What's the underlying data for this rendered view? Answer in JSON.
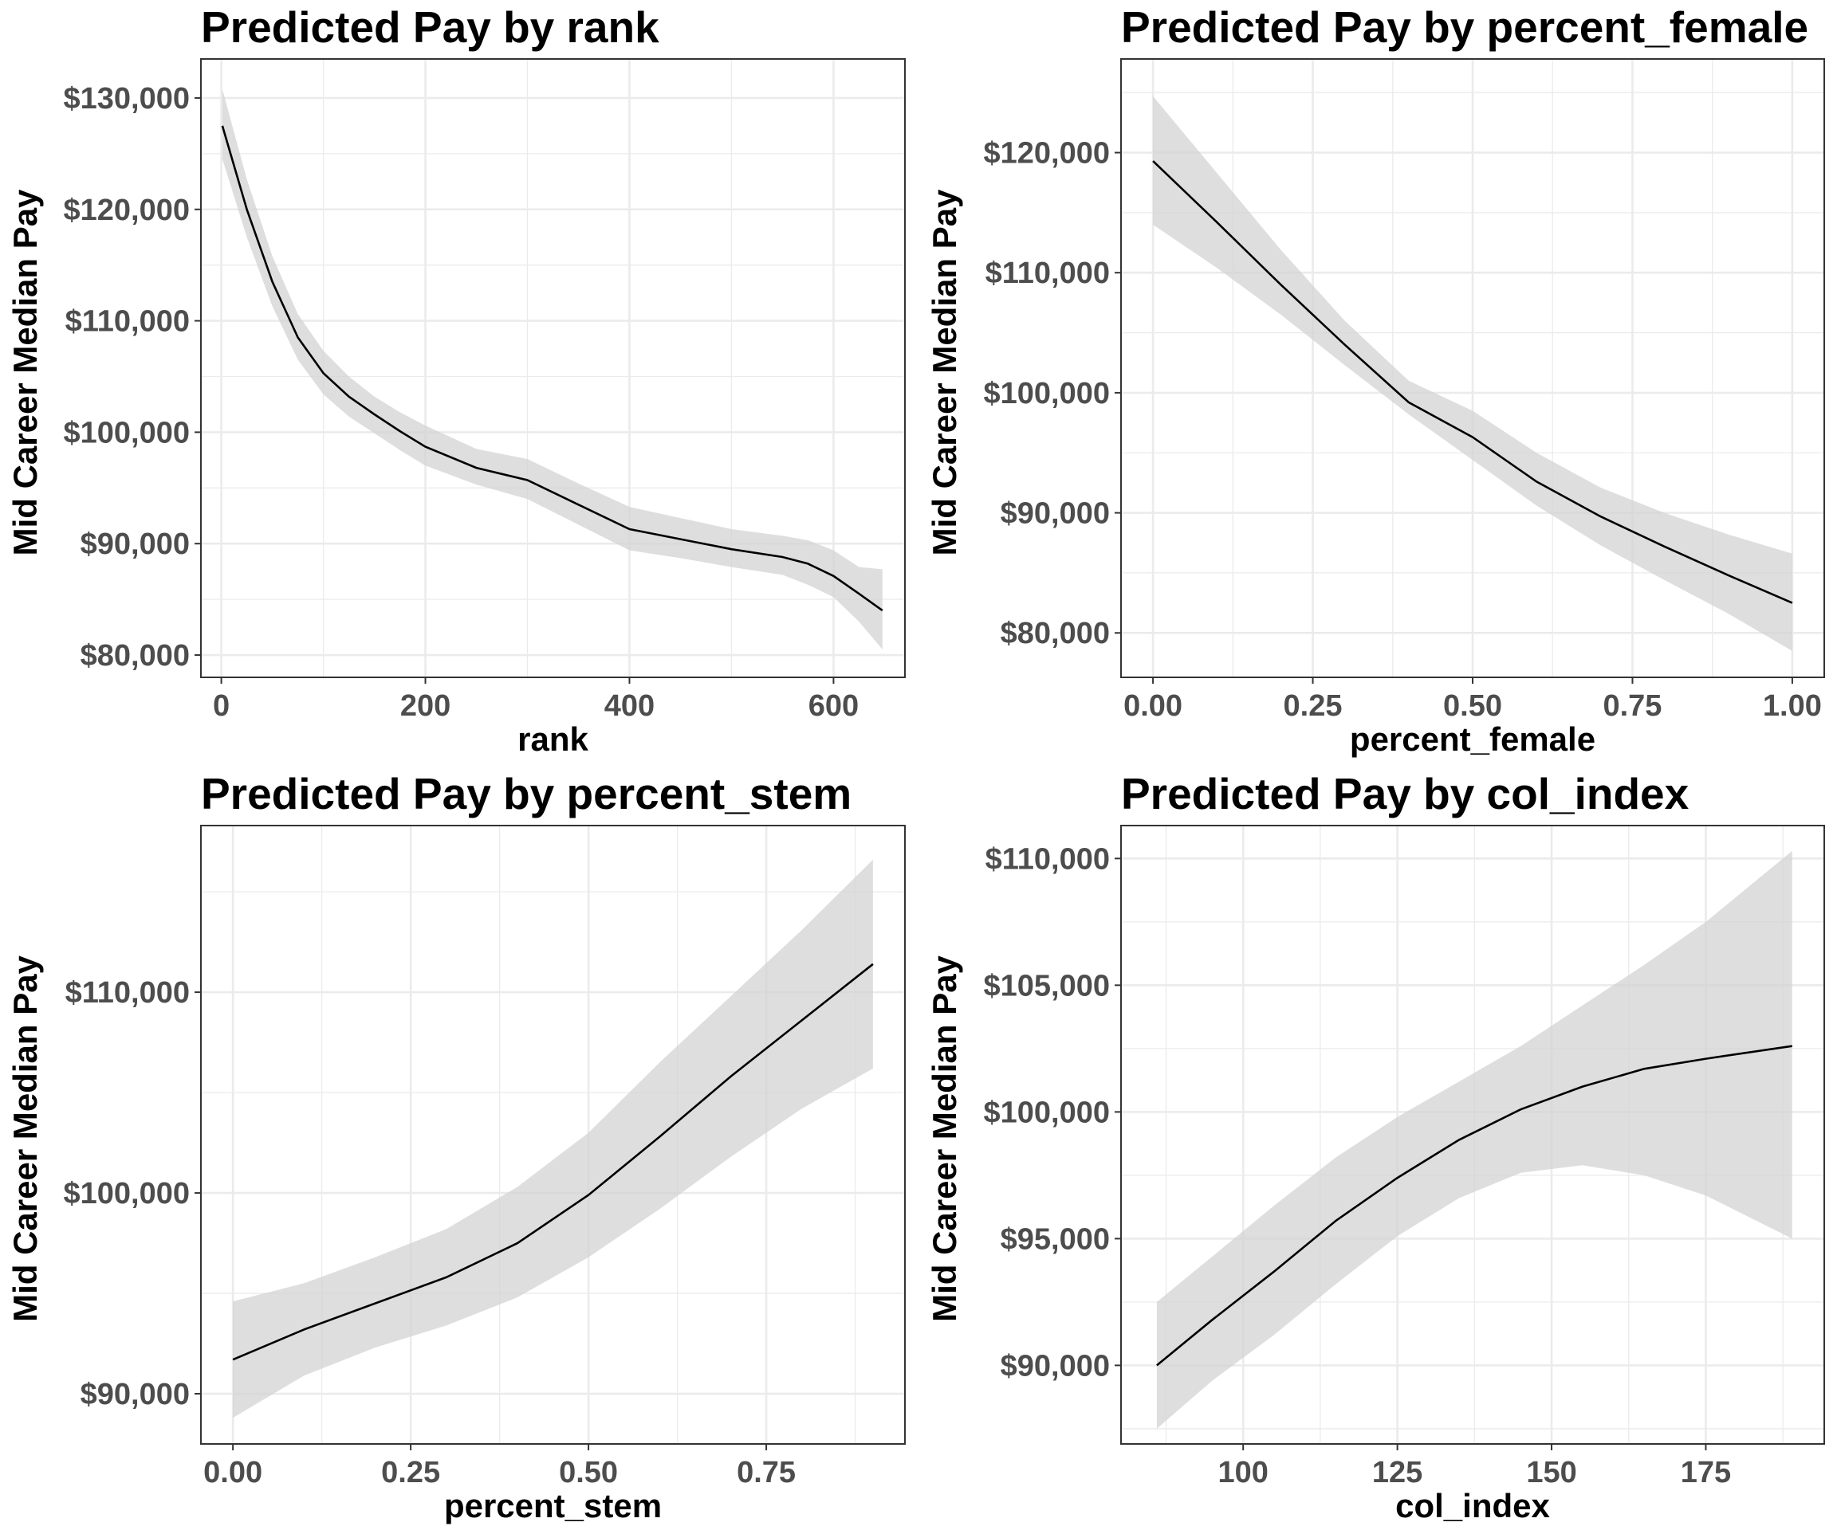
{
  "chart_data": [
    {
      "type": "line",
      "title": "Predicted Pay by rank",
      "xlabel": "rank",
      "ylabel": "Mid Career Median Pay",
      "xlim": [
        -20,
        670
      ],
      "ylim": [
        78000,
        133500
      ],
      "x_ticks": [
        0,
        200,
        400,
        600
      ],
      "x_tick_labels": [
        "0",
        "200",
        "400",
        "600"
      ],
      "y_ticks": [
        80000,
        90000,
        100000,
        110000,
        120000,
        130000
      ],
      "y_tick_labels": [
        "$80,000",
        "$90,000",
        "$100,000",
        "$110,000",
        "$120,000",
        "$130,000"
      ],
      "grid": true,
      "series": [
        {
          "x": [
            1,
            25,
            50,
            75,
            100,
            125,
            150,
            175,
            200,
            250,
            300,
            350,
            400,
            450,
            500,
            550,
            575,
            600,
            625,
            648
          ],
          "y": [
            127500,
            120000,
            113500,
            108500,
            105300,
            103200,
            101600,
            100100,
            98700,
            96800,
            95700,
            93500,
            91300,
            90400,
            89500,
            88800,
            88200,
            87100,
            85500,
            84000
          ],
          "y_low": [
            124500,
            117500,
            111300,
            106500,
            103400,
            101400,
            99900,
            98400,
            97000,
            95300,
            94000,
            91700,
            89400,
            88700,
            87900,
            87200,
            86300,
            85200,
            83000,
            80500
          ],
          "y_high": [
            130800,
            122700,
            115800,
            110600,
            107300,
            105000,
            103200,
            101800,
            100600,
            98500,
            97600,
            95400,
            93300,
            92300,
            91300,
            90700,
            90300,
            89400,
            87900,
            87700
          ]
        }
      ]
    },
    {
      "type": "line",
      "title": "Predicted Pay by percent_female",
      "xlabel": "percent_female",
      "ylabel": "Mid Career Median Pay",
      "xlim": [
        -0.05,
        1.05
      ],
      "ylim": [
        76300,
        127800
      ],
      "x_ticks": [
        0,
        0.25,
        0.5,
        0.75,
        1
      ],
      "x_tick_labels": [
        "0.00",
        "0.25",
        "0.50",
        "0.75",
        "1.00"
      ],
      "y_ticks": [
        80000,
        90000,
        100000,
        110000,
        120000
      ],
      "y_tick_labels": [
        "$80,000",
        "$90,000",
        "$100,000",
        "$110,000",
        "$120,000"
      ],
      "grid": true,
      "series": [
        {
          "x": [
            0,
            0.1,
            0.2,
            0.3,
            0.4,
            0.5,
            0.6,
            0.7,
            0.8,
            0.9,
            1.0
          ],
          "y": [
            119300,
            114200,
            109000,
            104000,
            99200,
            96300,
            92600,
            89700,
            87200,
            84800,
            82500
          ],
          "y_low": [
            114000,
            110400,
            106500,
            102300,
            98200,
            94400,
            90600,
            87300,
            84400,
            81600,
            78500
          ],
          "y_high": [
            124700,
            118300,
            111900,
            106000,
            101000,
            98500,
            95000,
            92100,
            90000,
            88200,
            86600
          ]
        }
      ]
    },
    {
      "type": "line",
      "title": "Predicted Pay by percent_stem",
      "xlabel": "percent_stem",
      "ylabel": "Mid Career Median Pay",
      "xlim": [
        -0.045,
        0.945
      ],
      "ylim": [
        87500,
        118300
      ],
      "x_ticks": [
        0,
        0.25,
        0.5,
        0.75
      ],
      "x_tick_labels": [
        "0.00",
        "0.25",
        "0.50",
        "0.75"
      ],
      "y_ticks": [
        90000,
        100000,
        110000
      ],
      "y_tick_labels": [
        "$90,000",
        "$100,000",
        "$110,000"
      ],
      "grid": true,
      "series": [
        {
          "x": [
            0,
            0.1,
            0.2,
            0.3,
            0.4,
            0.5,
            0.6,
            0.7,
            0.8,
            0.9
          ],
          "y": [
            91700,
            93200,
            94500,
            95800,
            97500,
            99900,
            102800,
            105800,
            108600,
            111400
          ],
          "y_low": [
            88800,
            90900,
            92300,
            93400,
            94800,
            96800,
            99200,
            101800,
            104200,
            106200
          ],
          "y_high": [
            94600,
            95500,
            96800,
            98200,
            100300,
            103000,
            106500,
            109800,
            113100,
            116600
          ]
        }
      ]
    },
    {
      "type": "line",
      "title": "Predicted Pay by col_index",
      "xlabel": "col_index",
      "ylabel": "Mid Career Median Pay",
      "xlim": [
        80.2,
        194.2
      ],
      "ylim": [
        86900,
        111300
      ],
      "x_ticks": [
        100,
        125,
        150,
        175
      ],
      "x_tick_labels": [
        "100",
        "125",
        "150",
        "175"
      ],
      "y_ticks": [
        90000,
        95000,
        100000,
        105000,
        110000
      ],
      "y_tick_labels": [
        "$90,000",
        "$95,000",
        "$100,000",
        "$105,000",
        "$110,000"
      ],
      "grid": true,
      "series": [
        {
          "x": [
            86,
            95,
            105,
            115,
            125,
            135,
            145,
            155,
            165,
            175,
            189
          ],
          "y": [
            90000,
            91800,
            93700,
            95700,
            97400,
            98900,
            100100,
            101000,
            101700,
            102100,
            102600
          ],
          "y_low": [
            87500,
            89400,
            91200,
            93200,
            95100,
            96600,
            97600,
            97900,
            97500,
            96700,
            95000
          ],
          "y_high": [
            92500,
            94300,
            96300,
            98200,
            99800,
            101200,
            102600,
            104200,
            105800,
            107500,
            110300
          ]
        }
      ]
    }
  ]
}
